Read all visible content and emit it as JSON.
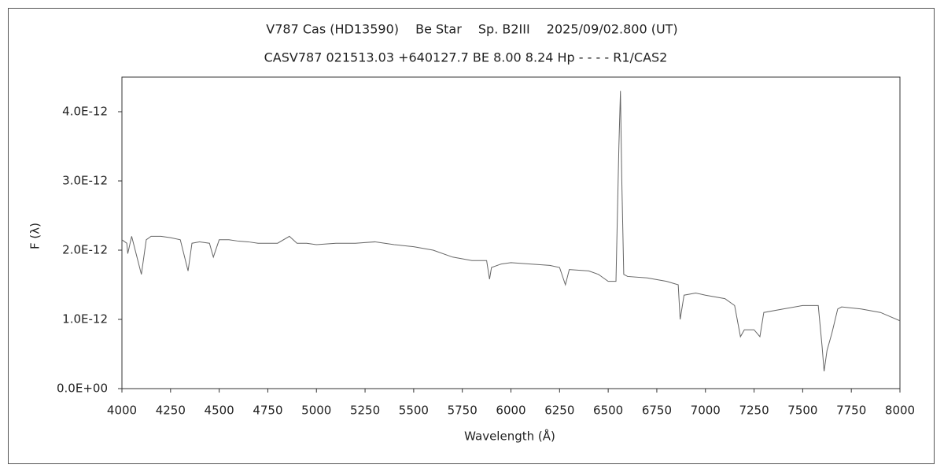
{
  "chart_data": {
    "type": "line",
    "title": "V787 Cas (HD13590)　 Be Star　 Sp. B2III　 2025/09/02.800 (UT)",
    "subtitle": "CASV787 021513.03 +640127.7 BE 8.00 8.24 Hp - - - - R1/CAS2",
    "x_label": "Wavelength (Å)",
    "y_label": "F (λ)",
    "color": "#666666",
    "xlim": [
      4000,
      8000
    ],
    "xticks": [
      4000,
      4250,
      4500,
      4750,
      5000,
      5250,
      5500,
      5750,
      6000,
      6250,
      6500,
      6750,
      7000,
      7250,
      7500,
      7750,
      8000
    ],
    "ylim": [
      0,
      4.5e-12
    ],
    "yticks": [
      {
        "value": 0,
        "label": "0.0E+00"
      },
      {
        "value": 1e-12,
        "label": "1.0E-12"
      },
      {
        "value": 2e-12,
        "label": "2.0E-12"
      },
      {
        "value": 3e-12,
        "label": "3.0E-12"
      },
      {
        "value": 4e-12,
        "label": "4.0E-12"
      }
    ],
    "x": [
      4000,
      4025,
      4030,
      4050,
      4100,
      4125,
      4150,
      4200,
      4250,
      4300,
      4340,
      4360,
      4400,
      4450,
      4470,
      4500,
      4550,
      4600,
      4650,
      4700,
      4750,
      4800,
      4861,
      4900,
      4950,
      5000,
      5100,
      5200,
      5300,
      5400,
      5500,
      5600,
      5700,
      5800,
      5875,
      5890,
      5900,
      5950,
      6000,
      6100,
      6200,
      6250,
      6280,
      6300,
      6400,
      6450,
      6500,
      6540,
      6555,
      6563,
      6570,
      6580,
      6600,
      6700,
      6800,
      6860,
      6870,
      6890,
      6950,
      7000,
      7100,
      7150,
      7180,
      7200,
      7250,
      7280,
      7300,
      7400,
      7500,
      7580,
      7600,
      7610,
      7625,
      7650,
      7680,
      7700,
      7800,
      7900,
      8000
    ],
    "values": [
      2.15e-12,
      2.1e-12,
      1.95e-12,
      2.2e-12,
      1.65e-12,
      2.15e-12,
      2.2e-12,
      2.2e-12,
      2.18e-12,
      2.15e-12,
      1.7e-12,
      2.1e-12,
      2.12e-12,
      2.1e-12,
      1.9e-12,
      2.15e-12,
      2.15e-12,
      2.13e-12,
      2.12e-12,
      2.1e-12,
      2.1e-12,
      2.1e-12,
      2.2e-12,
      2.1e-12,
      2.1e-12,
      2.08e-12,
      2.1e-12,
      2.1e-12,
      2.12e-12,
      2.08e-12,
      2.05e-12,
      2e-12,
      1.9e-12,
      1.85e-12,
      1.85e-12,
      1.58e-12,
      1.75e-12,
      1.8e-12,
      1.82e-12,
      1.8e-12,
      1.78e-12,
      1.75e-12,
      1.5e-12,
      1.72e-12,
      1.7e-12,
      1.65e-12,
      1.55e-12,
      1.55e-12,
      3.5e-12,
      4.3e-12,
      3e-12,
      1.65e-12,
      1.62e-12,
      1.6e-12,
      1.55e-12,
      1.5e-12,
      1e-12,
      1.35e-12,
      1.38e-12,
      1.35e-12,
      1.3e-12,
      1.2e-12,
      7.5e-13,
      8.5e-13,
      8.5e-13,
      7.5e-13,
      1.1e-12,
      1.15e-12,
      1.2e-12,
      1.2e-12,
      6e-13,
      2.5e-13,
      5.5e-13,
      8e-13,
      1.15e-12,
      1.18e-12,
      1.15e-12,
      1.1e-12,
      9.8e-13
    ]
  }
}
